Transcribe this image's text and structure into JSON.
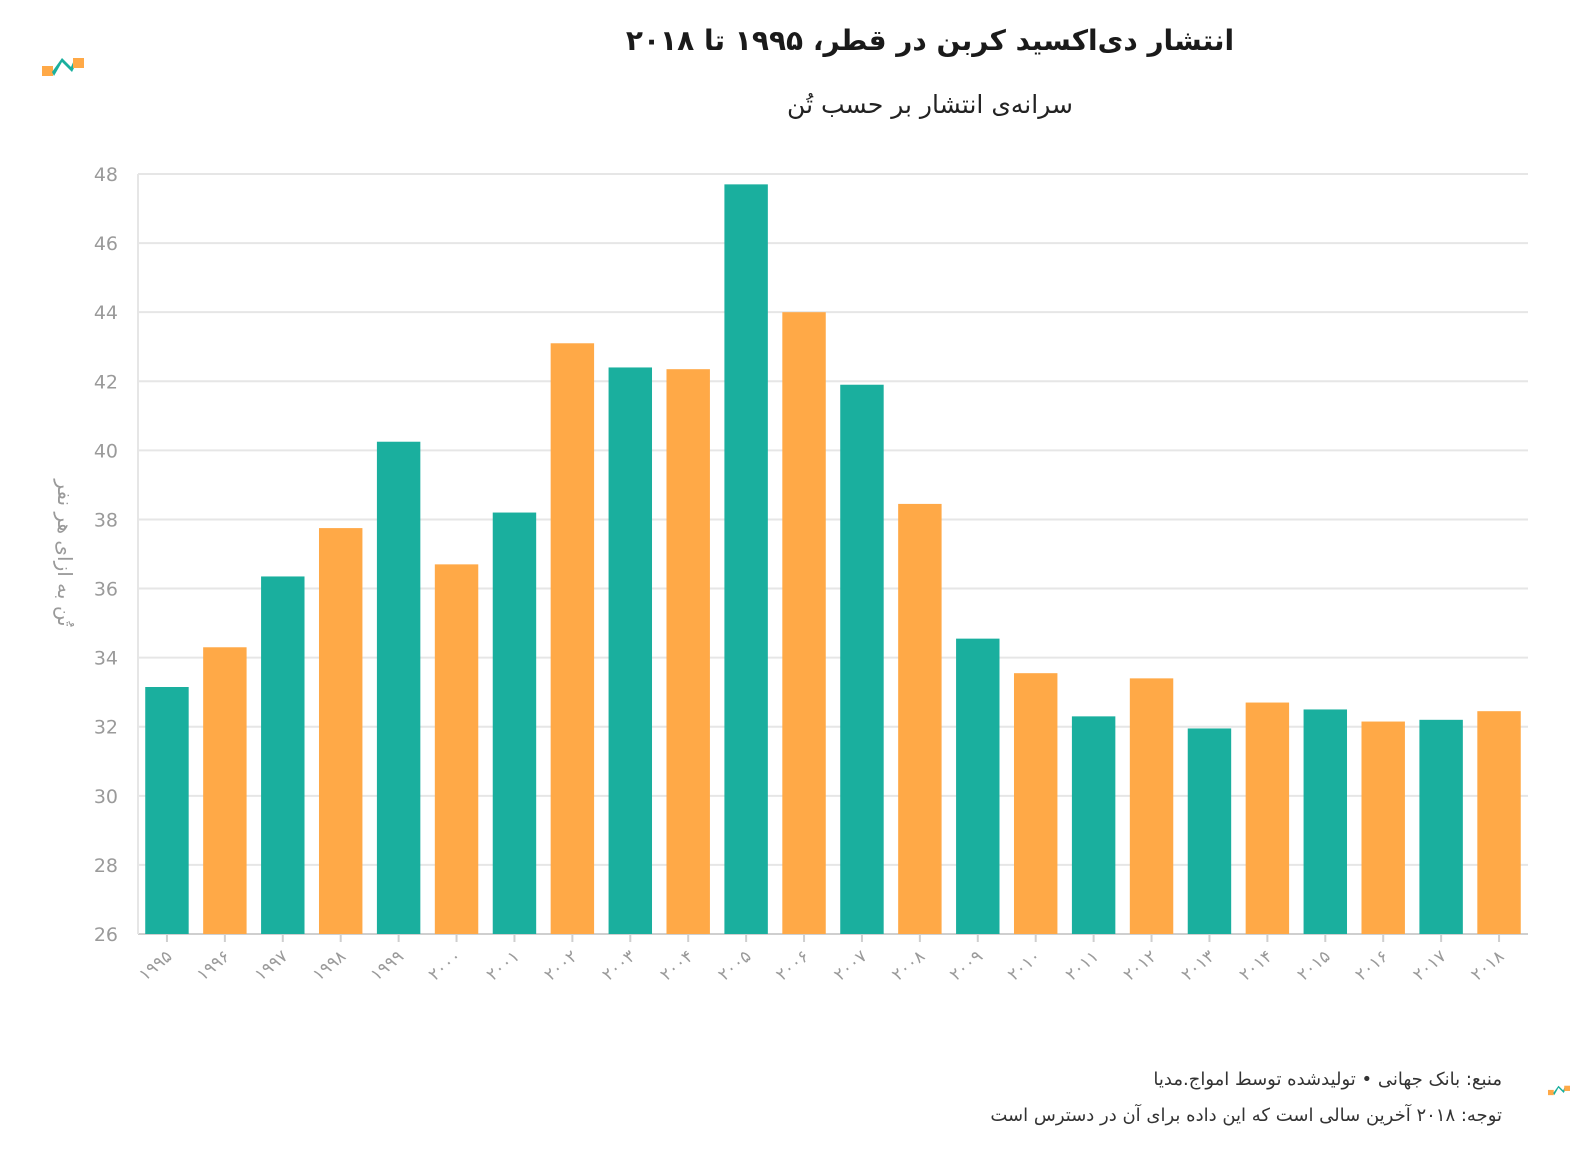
{
  "chart_data": {
    "type": "bar",
    "title": "انتشار دی‌اکسید کربن در قطر، ۱۹۹۵ تا ۲۰۱۸",
    "subtitle": "سرانه‌ی انتشار بر حسب تُن",
    "ylabel": "تُن به ازای هر نفر",
    "xlabel": "",
    "ylim": [
      26,
      48
    ],
    "yticks": [
      26,
      28,
      30,
      32,
      34,
      36,
      38,
      40,
      42,
      44,
      46,
      48
    ],
    "grid": true,
    "categories": [
      "۱۹۹۵",
      "۱۹۹۶",
      "۱۹۹۷",
      "۱۹۹۸",
      "۱۹۹۹",
      "۲۰۰۰",
      "۲۰۰۱",
      "۲۰۰۲",
      "۲۰۰۳",
      "۲۰۰۴",
      "۲۰۰۵",
      "۲۰۰۶",
      "۲۰۰۷",
      "۲۰۰۸",
      "۲۰۰۹",
      "۲۰۱۰",
      "۲۰۱۱",
      "۲۰۱۲",
      "۲۰۱۳",
      "۲۰۱۴",
      "۲۰۱۵",
      "۲۰۱۶",
      "۲۰۱۷",
      "۲۰۱۸"
    ],
    "values": [
      33.15,
      34.3,
      36.35,
      37.75,
      40.25,
      36.7,
      38.2,
      43.1,
      42.4,
      42.35,
      47.7,
      44.0,
      41.9,
      38.45,
      34.55,
      33.55,
      32.3,
      33.4,
      31.95,
      32.7,
      32.5,
      32.15,
      32.2,
      32.45
    ],
    "colors": [
      "#1aaf9e",
      "#ffa947",
      "#1aaf9e",
      "#ffa947",
      "#1aaf9e",
      "#ffa947",
      "#1aaf9e",
      "#ffa947",
      "#1aaf9e",
      "#ffa947",
      "#1aaf9e",
      "#ffa947",
      "#1aaf9e",
      "#ffa947",
      "#1aaf9e",
      "#ffa947",
      "#1aaf9e",
      "#ffa947",
      "#1aaf9e",
      "#ffa947",
      "#1aaf9e",
      "#ffa947",
      "#1aaf9e",
      "#ffa947"
    ]
  },
  "footer": {
    "source": "منبع: بانک جهانی • تولیدشده توسط امواج.مدیا",
    "note": "توجه: ۲۰۱۸ آخرین سالی است که این داده برای آن در دسترس است"
  },
  "brand": {
    "teal": "#1aaf9e",
    "orange": "#ffa947"
  }
}
